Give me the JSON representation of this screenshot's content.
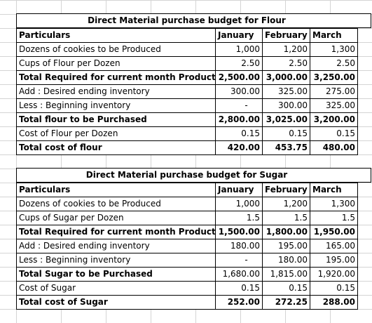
{
  "flour": {
    "title": "Direct Material purchase budget for Flour",
    "headers": [
      "Particulars",
      "January",
      "February",
      "March"
    ],
    "rows": [
      {
        "label": "Dozens of cookies to be Produced",
        "jan": "1,000",
        "feb": "1,200",
        "mar": "1,300"
      },
      {
        "label": "Cups of Flour per Dozen",
        "jan": "2.50",
        "feb": "2.50",
        "mar": "2.50"
      },
      {
        "label": "Total Required for current month Production",
        "jan": "2,500.00",
        "feb": "3,000.00",
        "mar": "3,250.00"
      },
      {
        "label": "Add : Desired ending inventory",
        "jan": "300.00",
        "feb": "325.00",
        "mar": "275.00"
      },
      {
        "label": "Less : Beginning inventory",
        "jan": "-",
        "feb": "300.00",
        "mar": "325.00"
      },
      {
        "label": "Total flour to be Purchased",
        "jan": "2,800.00",
        "feb": "3,025.00",
        "mar": "3,200.00"
      },
      {
        "label": "Cost of Flour per Dozen",
        "jan": "0.15",
        "feb": "0.15",
        "mar": "0.15"
      },
      {
        "label": "Total cost of flour",
        "jan": "420.00",
        "feb": "453.75",
        "mar": "480.00"
      }
    ]
  },
  "sugar": {
    "title": "Direct Material purchase budget for Sugar",
    "headers": [
      "Particulars",
      "January",
      "February",
      "March"
    ],
    "rows": [
      {
        "label": "Dozens of cookies to be Produced",
        "jan": "1,000",
        "feb": "1,200",
        "mar": "1,300"
      },
      {
        "label": "Cups of Sugar per Dozen",
        "jan": "1.5",
        "feb": "1.5",
        "mar": "1.5"
      },
      {
        "label": "Total Required for current month Production",
        "jan": "1,500.00",
        "feb": "1,800.00",
        "mar": "1,950.00"
      },
      {
        "label": "Add : Desired ending inventory",
        "jan": "180.00",
        "feb": "195.00",
        "mar": "165.00"
      },
      {
        "label": "Less : Beginning inventory",
        "jan": "-",
        "feb": "180.00",
        "mar": "195.00"
      },
      {
        "label": "Total Sugar to be Purchased",
        "jan": "1,680.00",
        "feb": "1,815.00",
        "mar": "1,920.00"
      },
      {
        "label": "Cost of Sugar",
        "jan": "0.15",
        "feb": "0.15",
        "mar": "0.15"
      },
      {
        "label": "Total cost of Sugar",
        "jan": "252.00",
        "feb": "272.25",
        "mar": "288.00"
      }
    ]
  }
}
